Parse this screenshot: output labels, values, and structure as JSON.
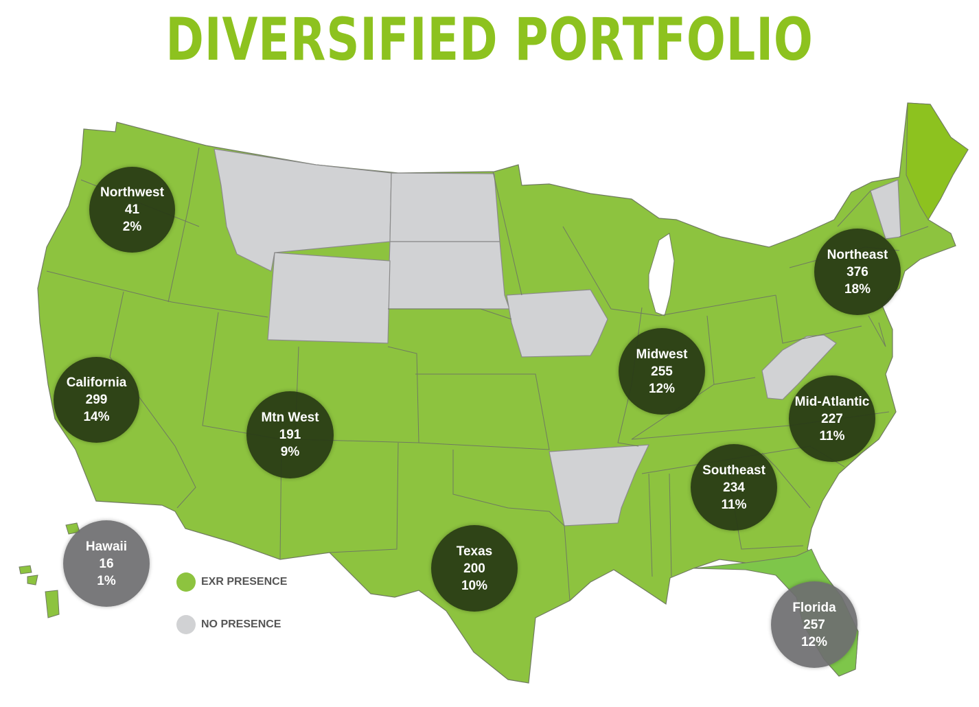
{
  "title": "DIVERSIFIED PORTFOLIO",
  "colors": {
    "presence": "#8dc33f",
    "no_presence": "#d1d2d4",
    "bubble": "#2f4416",
    "title": "#8dc21f"
  },
  "regions": [
    {
      "name": "Northwest",
      "count": "41",
      "share": "2%"
    },
    {
      "name": "California",
      "count": "299",
      "share": "14%"
    },
    {
      "name": "Mtn West",
      "count": "191",
      "share": "9%"
    },
    {
      "name": "Midwest",
      "count": "255",
      "share": "12%"
    },
    {
      "name": "Northeast",
      "count": "376",
      "share": "18%"
    },
    {
      "name": "Mid-Atlantic",
      "count": "227",
      "share": "11%"
    },
    {
      "name": "Southeast",
      "count": "234",
      "share": "11%"
    },
    {
      "name": "Texas",
      "count": "200",
      "share": "10%"
    },
    {
      "name": "Hawaii",
      "count": "16",
      "share": "1%"
    },
    {
      "name": "Florida",
      "count": "257",
      "share": "12%"
    }
  ],
  "legend": {
    "presence": "EXR PRESENCE",
    "no_presence": "NO PRESENCE"
  }
}
